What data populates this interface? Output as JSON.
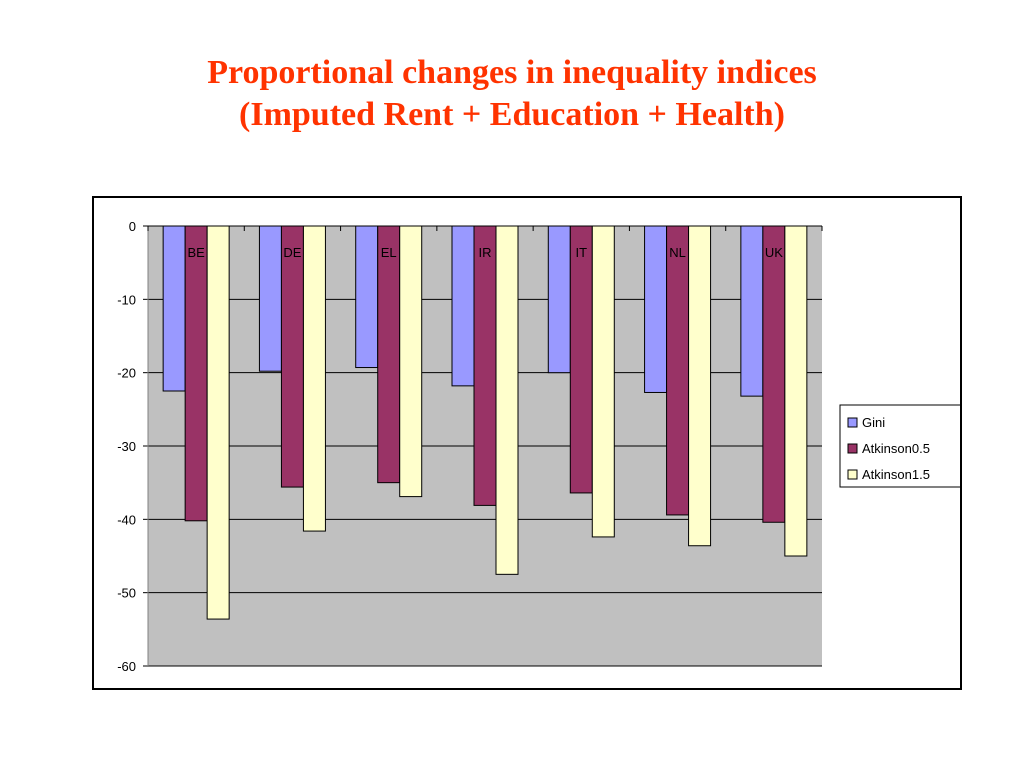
{
  "title": {
    "line1": "Proportional changes in inequality indices",
    "line2": "(Imputed Rent + Education + Health)"
  },
  "colors": {
    "title": "#ff3300",
    "plot_background": "#c0c0c0",
    "gridline": "#000000",
    "series": [
      "#9999ff",
      "#993366",
      "#ffffcc"
    ]
  },
  "chart_data": {
    "type": "bar",
    "title": "",
    "xlabel": "",
    "ylabel": "",
    "categories": [
      "BE",
      "DE",
      "EL",
      "IR",
      "IT",
      "NL",
      "UK"
    ],
    "series": [
      {
        "name": "Gini",
        "values": [
          -22.5,
          -19.8,
          -19.3,
          -21.8,
          -20.0,
          -22.7,
          -23.2
        ]
      },
      {
        "name": "Atkinson0.5",
        "values": [
          -40.2,
          -35.6,
          -35.0,
          -38.1,
          -36.4,
          -39.4,
          -40.4
        ]
      },
      {
        "name": "Atkinson1.5",
        "values": [
          -53.6,
          -41.6,
          -36.9,
          -47.5,
          -42.4,
          -43.6,
          -45.0
        ]
      }
    ],
    "ylim": [
      -60,
      0
    ],
    "yticks": [
      0,
      -10,
      -20,
      -30,
      -40,
      -50,
      -60
    ],
    "grid": true,
    "legend_position": "right"
  }
}
